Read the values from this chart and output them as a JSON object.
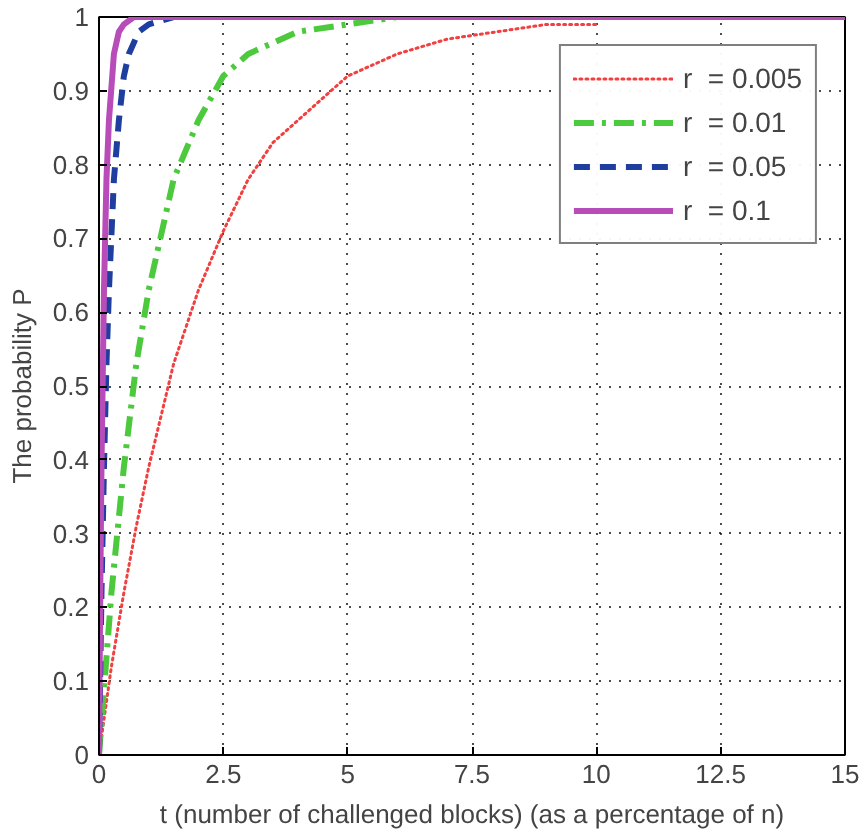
{
  "chart_data": {
    "type": "line",
    "xlabel": "t (number of challenged blocks) (as a percentage of n)",
    "ylabel": "The probability P",
    "xlim": [
      0,
      15
    ],
    "xticks": [
      0,
      2.5,
      5,
      7.5,
      10,
      12.5,
      15
    ],
    "ylim": [
      0,
      1
    ],
    "yticks": [
      0,
      0.1,
      0.2,
      0.3,
      0.4,
      0.5,
      0.6,
      0.7,
      0.8,
      0.9,
      1
    ],
    "grid": true,
    "legend": "top right",
    "series": [
      {
        "name": "r  = 0.005",
        "color": "#f04040",
        "line_style": "dotted",
        "x": [
          0,
          0.25,
          0.5,
          0.75,
          1,
          1.5,
          2,
          2.5,
          3,
          3.5,
          4,
          4.5,
          5,
          6,
          7,
          8,
          9,
          10
        ],
        "values": [
          0,
          0.12,
          0.22,
          0.31,
          0.39,
          0.53,
          0.63,
          0.71,
          0.78,
          0.83,
          0.86,
          0.89,
          0.92,
          0.95,
          0.97,
          0.98,
          0.99,
          0.99
        ]
      },
      {
        "name": "r  = 0.01",
        "color": "#4cc93c",
        "line_style": "dashdot",
        "x": [
          0,
          0.25,
          0.5,
          0.75,
          1,
          1.5,
          2,
          2.5,
          3,
          4,
          5,
          6
        ],
        "values": [
          0,
          0.22,
          0.39,
          0.53,
          0.63,
          0.78,
          0.86,
          0.92,
          0.95,
          0.98,
          0.99,
          1
        ]
      },
      {
        "name": "r  = 0.05",
        "color": "#1f3fa0",
        "line_style": "dashed",
        "x": [
          0,
          0.05,
          0.1,
          0.15,
          0.2,
          0.3,
          0.4,
          0.5,
          0.6,
          0.8,
          1,
          1.5,
          15
        ],
        "values": [
          0,
          0.22,
          0.39,
          0.53,
          0.63,
          0.78,
          0.86,
          0.92,
          0.95,
          0.98,
          0.99,
          1,
          1
        ]
      },
      {
        "name": "r  = 0.1",
        "color": "#b84cb8",
        "line_style": "solid",
        "x": [
          0,
          0.025,
          0.05,
          0.1,
          0.15,
          0.2,
          0.3,
          0.4,
          0.5,
          0.7,
          15
        ],
        "values": [
          0,
          0.22,
          0.39,
          0.63,
          0.78,
          0.86,
          0.95,
          0.98,
          0.99,
          1,
          1
        ]
      }
    ]
  }
}
